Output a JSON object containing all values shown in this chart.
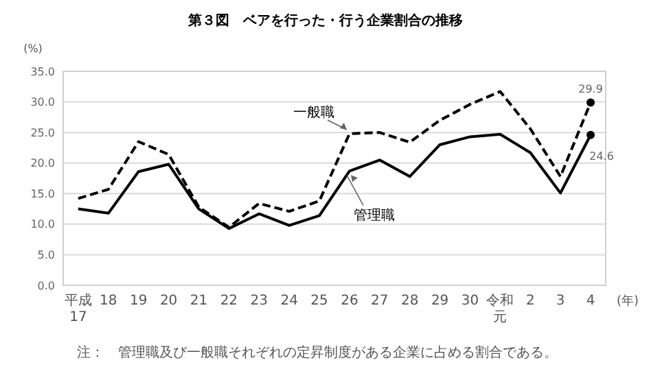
{
  "chart_data": {
    "type": "line",
    "title": "第３図　ベアを行った・行う企業割合の推移",
    "xlabel": "(年)",
    "ylabel": "(%)",
    "categories": [
      "平成17",
      "18",
      "19",
      "20",
      "21",
      "22",
      "23",
      "24",
      "25",
      "26",
      "27",
      "28",
      "29",
      "30",
      "令和元",
      "2",
      "3",
      "4"
    ],
    "series": [
      {
        "name": "一般職",
        "color": "#000000",
        "line_style": "dashed",
        "values": [
          14.2,
          15.7,
          23.5,
          21.4,
          12.8,
          9.5,
          13.4,
          12.1,
          13.8,
          24.8,
          25.0,
          23.4,
          27.0,
          29.6,
          31.7,
          25.6,
          17.8,
          29.9
        ],
        "value_labels": [
          null,
          null,
          null,
          null,
          null,
          null,
          null,
          null,
          null,
          null,
          null,
          null,
          null,
          null,
          null,
          null,
          null,
          "29.9"
        ]
      },
      {
        "name": "管理職",
        "color": "#000000",
        "line_style": "solid",
        "values": [
          12.5,
          11.8,
          18.6,
          19.8,
          12.5,
          9.3,
          11.7,
          9.8,
          11.4,
          18.7,
          20.5,
          17.8,
          23.0,
          24.3,
          24.7,
          21.7,
          15.1,
          24.6
        ],
        "value_labels": [
          null,
          null,
          null,
          null,
          null,
          null,
          null,
          null,
          null,
          null,
          null,
          null,
          null,
          null,
          null,
          null,
          null,
          "24.6"
        ]
      }
    ],
    "ylim": [
      0,
      35
    ],
    "yticks": [
      {
        "value": 0,
        "label": "0.0"
      },
      {
        "value": 5,
        "label": "5.0"
      },
      {
        "value": 10,
        "label": "10.0"
      },
      {
        "value": 15,
        "label": "15.0"
      },
      {
        "value": 20,
        "label": "20.0"
      },
      {
        "value": 25,
        "label": "25.0"
      },
      {
        "value": 30,
        "label": "30.0"
      },
      {
        "value": 35,
        "label": "35.0"
      }
    ],
    "grid": "y",
    "annotations": [
      "注：　管理職及び一般職それぞれの定昇制度がある企業に占める割合である。"
    ]
  }
}
